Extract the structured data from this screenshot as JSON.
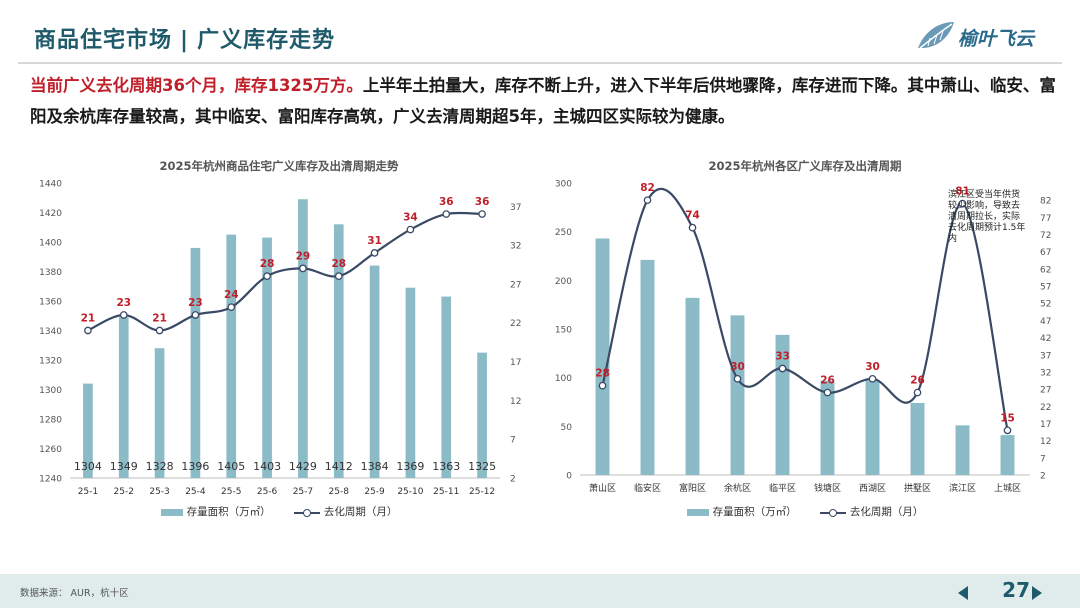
{
  "header": {
    "title_left": "商品住宅市场",
    "title_sep": "|",
    "title_right": "广义库存走势",
    "logo_text": "榆叶飞云"
  },
  "summary": {
    "highlight": "当前广义去化周期36个月，库存1325万方。",
    "rest": "上半年土拍量大，库存不断上升，进入下半年后供地骤降，库存进而下降。其中萧山、临安、富阳及余杭库存量较高，其中临安、富阳库存高筑，广义去清周期超5年，主城四区实际较为健康。"
  },
  "footer": {
    "source": "数据来源： AUR，杭十区",
    "page": "27"
  },
  "chart_data": [
    {
      "type": "bar",
      "title": "2025年杭州商品住宅广义库存及出清周期走势",
      "categories": [
        "25-1",
        "25-2",
        "25-3",
        "25-4",
        "25-5",
        "25-6",
        "25-7",
        "25-8",
        "25-9",
        "25-10",
        "25-11",
        "25-12"
      ],
      "series": [
        {
          "name": "存量面积（万㎡）",
          "type": "bar",
          "axis": "left",
          "values": [
            1304,
            1349,
            1328,
            1396,
            1405,
            1403,
            1429,
            1412,
            1384,
            1369,
            1363,
            1325
          ],
          "label_color": "#333333"
        },
        {
          "name": "去化周期（月）",
          "type": "line",
          "axis": "right",
          "values": [
            21,
            23,
            21,
            23,
            24,
            28,
            29,
            28,
            31,
            34,
            36,
            36
          ],
          "label_color": "#c0202a"
        }
      ],
      "y_left": {
        "min": 1240,
        "max": 1440,
        "ticks": [
          1240,
          1260,
          1280,
          1300,
          1320,
          1340,
          1360,
          1380,
          1400,
          1420,
          1440
        ]
      },
      "y_right": {
        "min": 2,
        "max": 40,
        "ticks": [
          2,
          7,
          12,
          17,
          22,
          27,
          32,
          37
        ]
      },
      "bar_color": "#8bbbc6",
      "line_color": "#3a4a66",
      "legend": "bottom"
    },
    {
      "type": "bar",
      "title": "2025年杭州各区广义库存及出清周期",
      "categories": [
        "萧山区",
        "临安区",
        "富阳区",
        "余杭区",
        "临平区",
        "钱塘区",
        "西湖区",
        "拱墅区",
        "滨江区",
        "上城区"
      ],
      "series": [
        {
          "name": "存量面积（万㎡）",
          "type": "bar",
          "axis": "left",
          "values": [
            243,
            221,
            182,
            164,
            144,
            97,
            97,
            74,
            51,
            41
          ]
        },
        {
          "name": "去化周期（月）",
          "type": "line",
          "axis": "right",
          "values": [
            28,
            82,
            74,
            30,
            33,
            26,
            30,
            26,
            81,
            15
          ],
          "label_color": "#c0202a"
        }
      ],
      "y_left": {
        "min": 0,
        "max": 300,
        "ticks": [
          0,
          50,
          100,
          150,
          200,
          250,
          300
        ]
      },
      "y_right": {
        "min": 2,
        "max": 87,
        "ticks": [
          2,
          7,
          12,
          17,
          22,
          27,
          32,
          37,
          42,
          47,
          52,
          57,
          62,
          67,
          72,
          77,
          82
        ]
      },
      "bar_color": "#8bbbc6",
      "line_color": "#3a4a66",
      "annotation": "滨江区受当年供货较少影响，导致去清周期拉长，实际去化周期预计1.5年内",
      "legend": "bottom"
    }
  ]
}
